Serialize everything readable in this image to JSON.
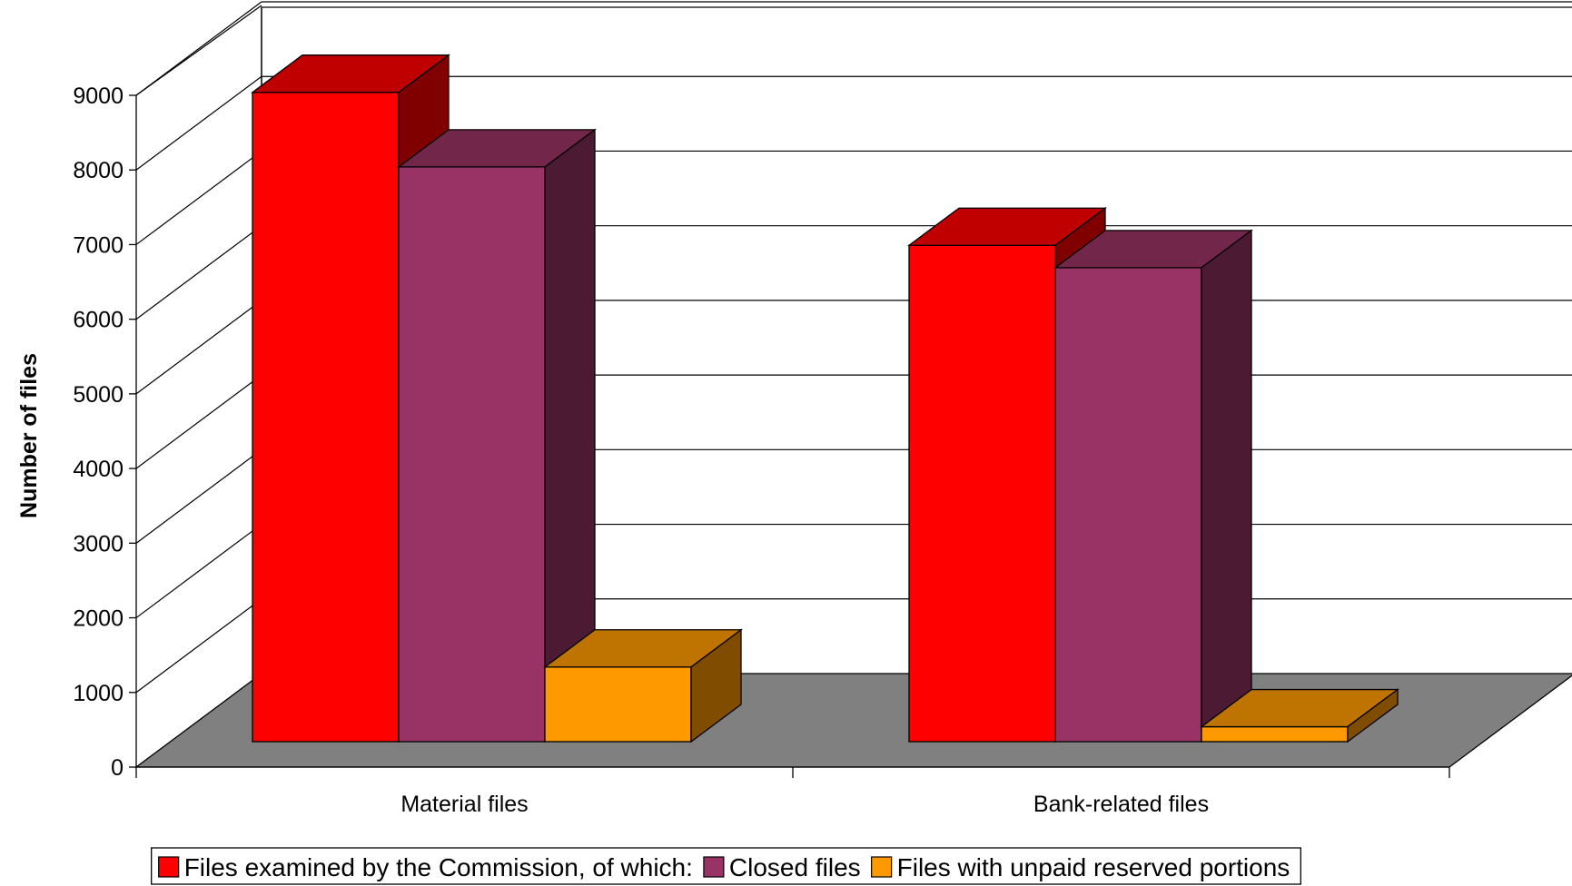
{
  "chart_data": {
    "type": "bar",
    "style": "3d-clustered-column",
    "categories": [
      "Material files",
      "Bank-related files"
    ],
    "series": [
      {
        "name": "Files examined by the Commission, of which:",
        "values": [
          8700,
          6650
        ],
        "color": "#ff0000",
        "top_color": "#c00000",
        "side_color": "#800000"
      },
      {
        "name": "Closed files",
        "values": [
          7700,
          6350
        ],
        "color": "#993366",
        "top_color": "#722649",
        "side_color": "#4c1b33"
      },
      {
        "name": "Files with unpaid reserved portions",
        "values": [
          1000,
          200
        ],
        "color": "#ff9900",
        "top_color": "#bf7300",
        "side_color": "#804d00"
      }
    ],
    "ylabel": "Number of files",
    "xlabel": "",
    "ylim": [
      0,
      9000
    ],
    "yticks": [
      0,
      1000,
      2000,
      3000,
      4000,
      5000,
      6000,
      7000,
      8000,
      9000
    ],
    "grid": true,
    "legend_position": "bottom",
    "floor_color": "#808080"
  }
}
